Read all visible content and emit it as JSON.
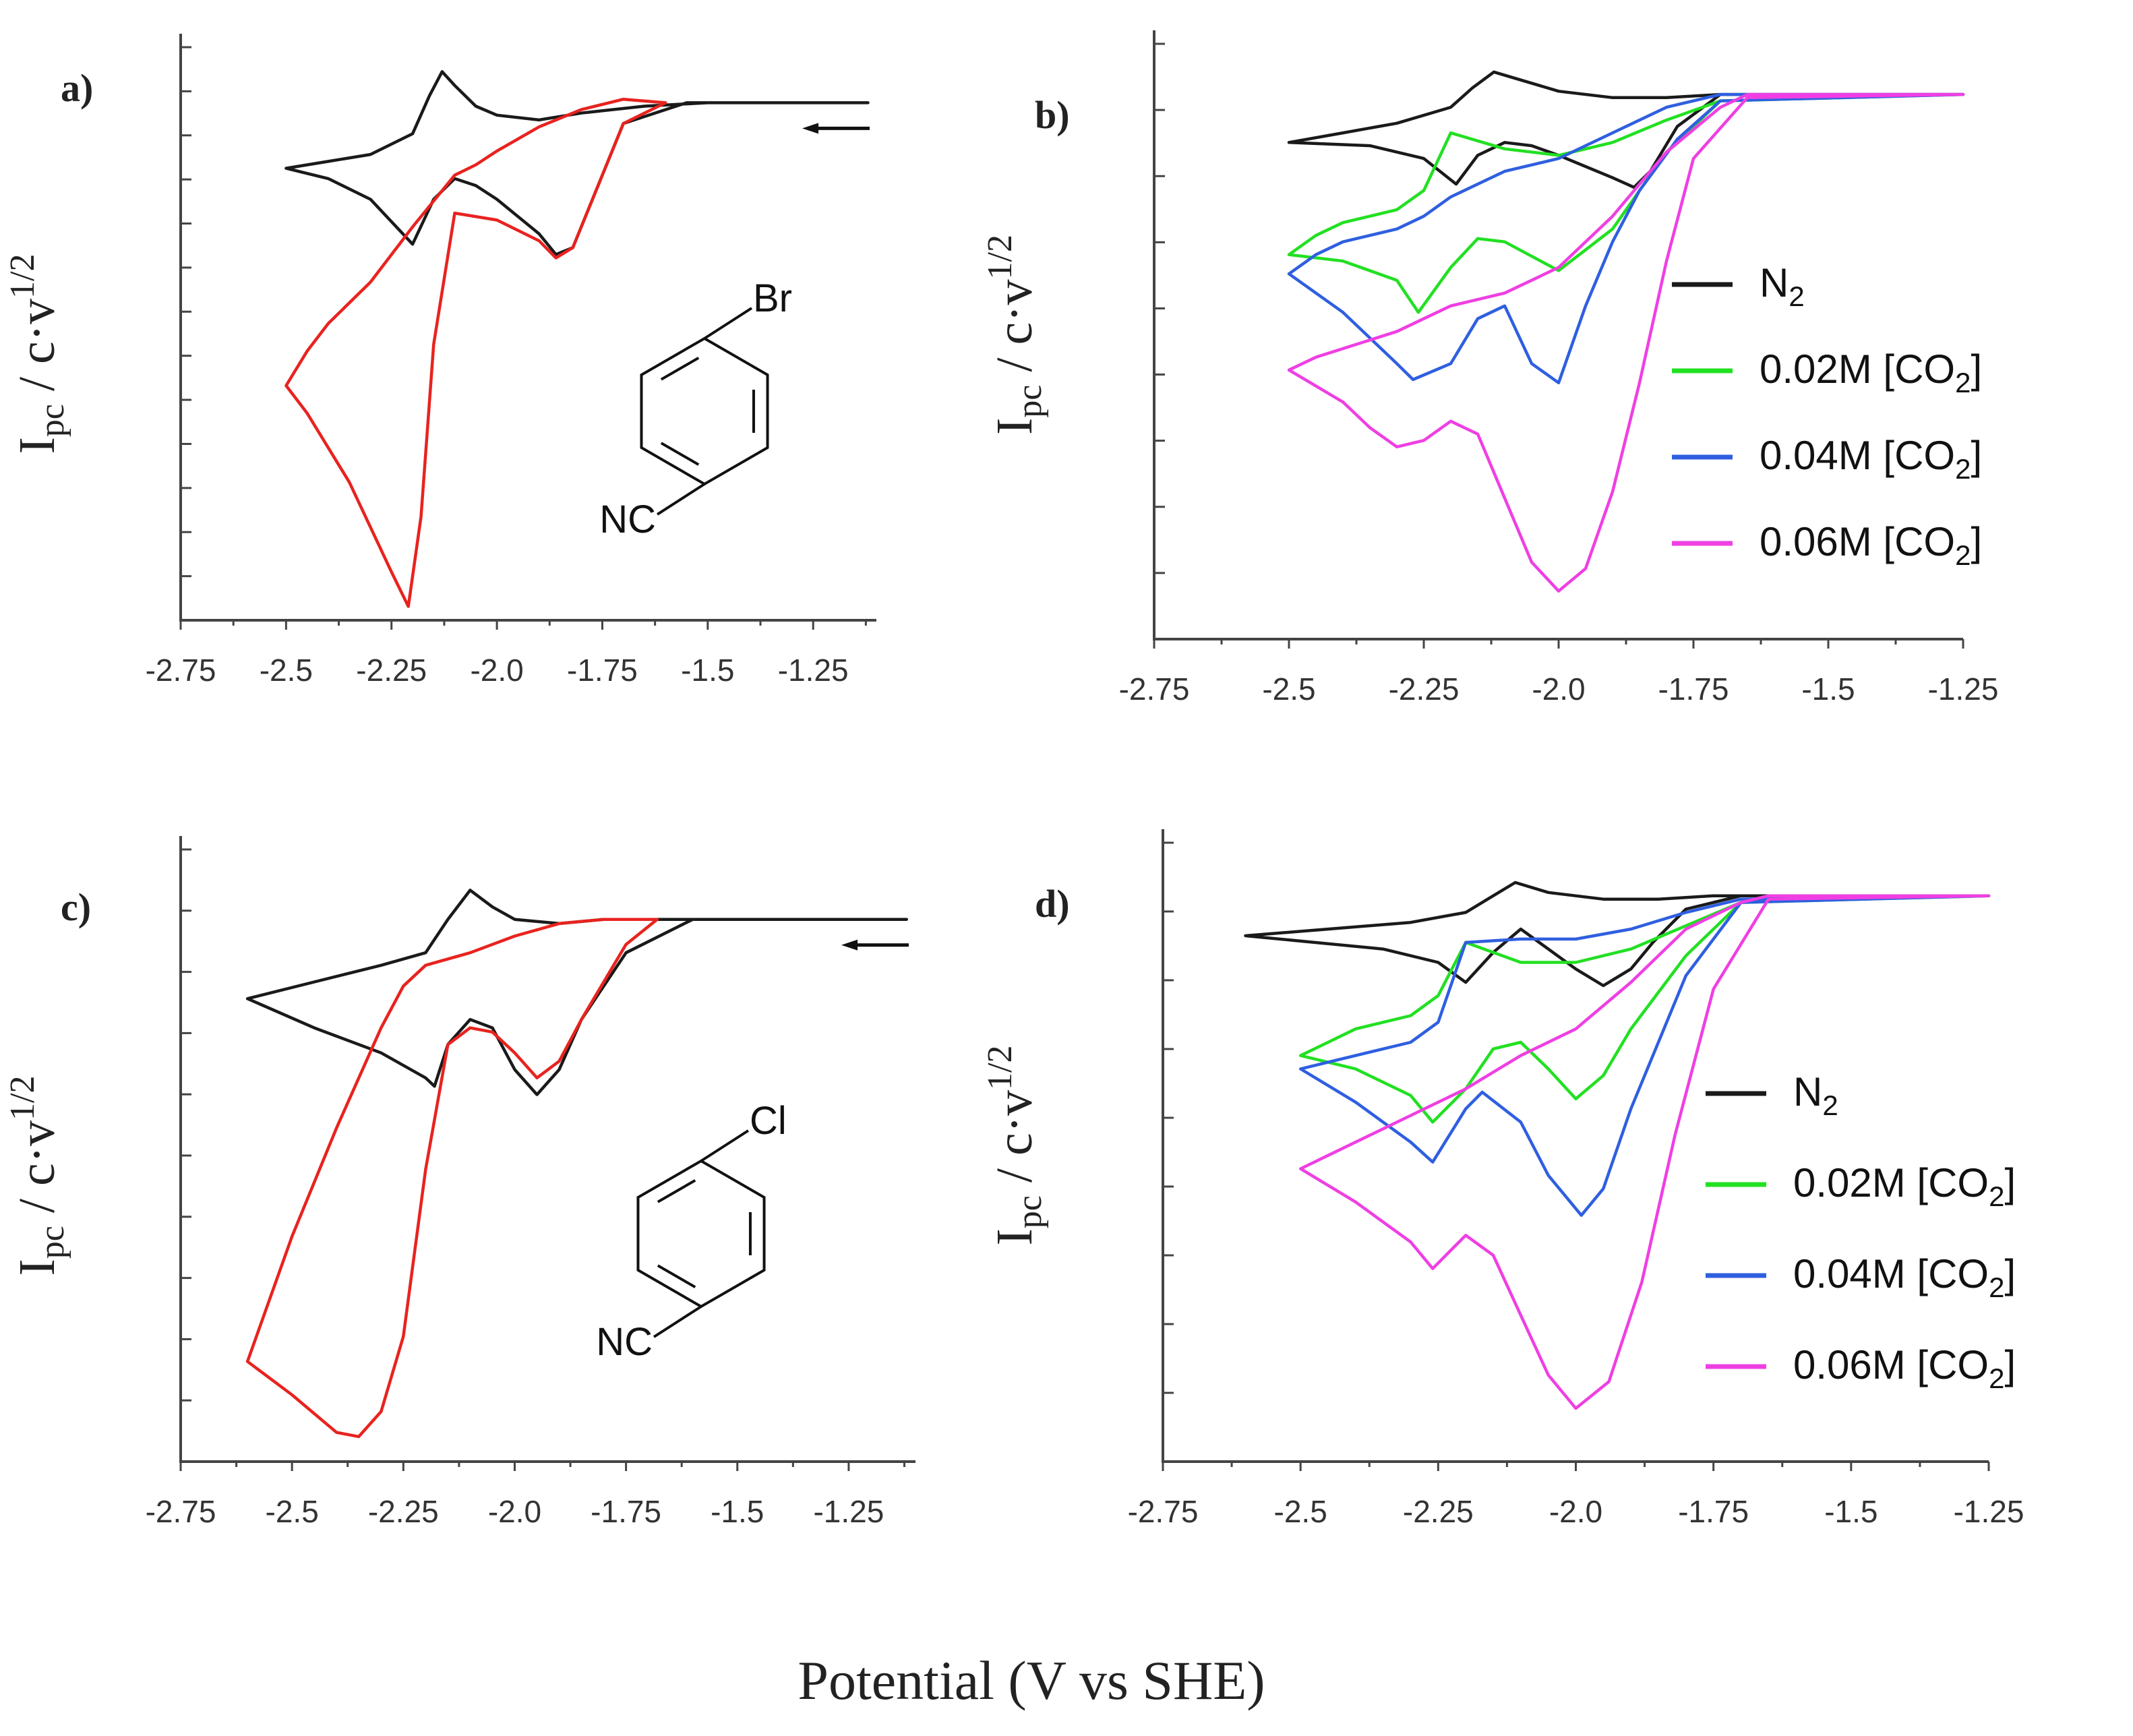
{
  "x_axis_label": "Potential (V vs SHE)",
  "colors": {
    "N2": "#1a1a1a",
    "CO2": "#e8231f",
    "0.02M": "#22e022",
    "0.04M": "#2f5fe0",
    "0.06M": "#ef3fe3"
  },
  "chart_data": [
    {
      "panel": "a)",
      "type": "line",
      "ylabel": "I",
      "ylabel_sub": "pc",
      "ylabel_rest": " / c·v",
      "ylabel_sup": "1/2",
      "xlim": [
        -2.75,
        -1.1
      ],
      "xticks": [
        "-2.75",
        "-2.5",
        "-2.25",
        "-2.0",
        "-1.75",
        "-1.5",
        "-1.25"
      ],
      "xtick_values": [
        -2.75,
        -2.5,
        -2.25,
        -2.0,
        -1.75,
        -1.5,
        -1.25
      ],
      "ylim": [
        -7.5,
        1
      ],
      "y_minor_ticks": 13,
      "scan_arrow": "leftward",
      "molecule": {
        "ring_substituents": [
          "Br",
          "NC"
        ],
        "shape": "para-disubstituted benzene"
      },
      "series": [
        {
          "color_key": "N2",
          "x": [
            -1.12,
            -1.55,
            -1.7,
            -1.78,
            -1.82,
            -1.86,
            -1.9,
            -2.0,
            -2.05,
            -2.1,
            -2.15,
            -2.2,
            -2.3,
            -2.4,
            -2.5,
            -2.4,
            -2.3,
            -2.2,
            -2.16,
            -2.13,
            -2.1,
            -2.05,
            -2.0,
            -1.9,
            -1.8,
            -1.65,
            -1.5,
            -1.12
          ],
          "y": [
            0,
            0,
            -0.3,
            -1.5,
            -2.1,
            -2.2,
            -1.9,
            -1.4,
            -1.2,
            -1.1,
            -1.4,
            -2.05,
            -1.4,
            -1.1,
            -0.95,
            -0.85,
            -0.75,
            -0.45,
            0.1,
            0.45,
            0.25,
            -0.05,
            -0.18,
            -0.25,
            -0.15,
            -0.05,
            0,
            0
          ]
        },
        {
          "color_key": "CO2",
          "x": [
            -1.6,
            -1.7,
            -1.78,
            -1.82,
            -1.86,
            -1.9,
            -2.0,
            -2.1,
            -2.15,
            -2.18,
            -2.21,
            -2.25,
            -2.35,
            -2.45,
            -2.5,
            -2.45,
            -2.4,
            -2.3,
            -2.2,
            -2.1,
            -2.05,
            -2.0,
            -1.9,
            -1.8,
            -1.7,
            -1.6
          ],
          "y": [
            0,
            -0.3,
            -1.5,
            -2.1,
            -2.25,
            -2.0,
            -1.7,
            -1.6,
            -3.5,
            -6.0,
            -7.3,
            -6.8,
            -5.5,
            -4.5,
            -4.1,
            -3.6,
            -3.2,
            -2.6,
            -1.8,
            -1.05,
            -0.9,
            -0.7,
            -0.35,
            -0.1,
            0.05,
            0
          ]
        }
      ]
    },
    {
      "panel": "b)",
      "type": "line",
      "ylabel": "I",
      "ylabel_sub": "pc",
      "ylabel_rest": " / c·v",
      "ylabel_sup": "1/2",
      "xlim": [
        -2.75,
        -1.25
      ],
      "xticks": [
        "-2.75",
        "-2.5",
        "-2.25",
        "-2.0",
        "-1.75",
        "-1.5",
        "-1.25"
      ],
      "xtick_values": [
        -2.75,
        -2.5,
        -2.25,
        -2.0,
        -1.75,
        -1.5,
        -1.25
      ],
      "ylim": [
        -8.5,
        1
      ],
      "y_minor_ticks": 9,
      "legend": [
        {
          "color_key": "N2",
          "label": "N",
          "sub": "2",
          "tail": ""
        },
        {
          "color_key": "0.02M",
          "label": "0.02M [CO",
          "sub": "2",
          "tail": "]"
        },
        {
          "color_key": "0.04M",
          "label": "0.04M [CO",
          "sub": "2",
          "tail": "]"
        },
        {
          "color_key": "0.06M",
          "label": "0.06M [CO",
          "sub": "2",
          "tail": "]"
        }
      ],
      "series": [
        {
          "color_key": "N2",
          "x": [
            -1.25,
            -1.7,
            -1.78,
            -1.83,
            -1.86,
            -1.9,
            -2.0,
            -2.05,
            -2.1,
            -2.15,
            -2.19,
            -2.25,
            -2.35,
            -2.5,
            -2.4,
            -2.3,
            -2.2,
            -2.16,
            -2.12,
            -2.08,
            -2.0,
            -1.9,
            -1.8,
            -1.7,
            -1.25
          ],
          "y": [
            0,
            0,
            -0.5,
            -1.2,
            -1.45,
            -1.3,
            -0.95,
            -0.8,
            -0.75,
            -0.95,
            -1.4,
            -1.0,
            -0.8,
            -0.75,
            -0.6,
            -0.45,
            -0.2,
            0.1,
            0.35,
            0.25,
            0.05,
            -0.05,
            -0.05,
            0,
            0
          ]
        },
        {
          "color_key": "0.02M",
          "x": [
            -1.25,
            -1.7,
            -1.8,
            -1.9,
            -2.0,
            -2.1,
            -2.15,
            -2.2,
            -2.26,
            -2.3,
            -2.4,
            -2.5,
            -2.45,
            -2.4,
            -2.3,
            -2.25,
            -2.2,
            -2.1,
            -2.0,
            -1.9,
            -1.8,
            -1.7,
            -1.25
          ],
          "y": [
            0,
            -0.1,
            -0.9,
            -2.1,
            -2.75,
            -2.3,
            -2.25,
            -2.7,
            -3.4,
            -2.9,
            -2.6,
            -2.5,
            -2.2,
            -2.0,
            -1.8,
            -1.5,
            -0.6,
            -0.85,
            -0.95,
            -0.75,
            -0.4,
            -0.1,
            0
          ]
        },
        {
          "color_key": "0.04M",
          "x": [
            -1.25,
            -1.7,
            -1.78,
            -1.85,
            -1.9,
            -1.95,
            -2.0,
            -2.05,
            -2.1,
            -2.15,
            -2.2,
            -2.27,
            -2.3,
            -2.4,
            -2.5,
            -2.45,
            -2.4,
            -2.3,
            -2.25,
            -2.2,
            -2.1,
            -2.0,
            -1.9,
            -1.8,
            -1.7,
            -1.25
          ],
          "y": [
            0,
            -0.1,
            -0.7,
            -1.5,
            -2.3,
            -3.3,
            -4.5,
            -4.2,
            -3.3,
            -3.5,
            -4.2,
            -4.45,
            -4.2,
            -3.4,
            -2.8,
            -2.5,
            -2.3,
            -2.1,
            -1.9,
            -1.6,
            -1.2,
            -1.0,
            -0.6,
            -0.2,
            0,
            0
          ]
        },
        {
          "color_key": "0.06M",
          "x": [
            -1.25,
            -1.65,
            -1.75,
            -1.8,
            -1.85,
            -1.9,
            -1.95,
            -2.0,
            -2.05,
            -2.1,
            -2.15,
            -2.2,
            -2.25,
            -2.3,
            -2.35,
            -2.4,
            -2.5,
            -2.45,
            -2.3,
            -2.2,
            -2.1,
            -2.0,
            -1.9,
            -1.8,
            -1.7,
            -1.65,
            -1.25
          ],
          "y": [
            0,
            -0.05,
            -1.0,
            -2.6,
            -4.5,
            -6.2,
            -7.4,
            -7.75,
            -7.3,
            -6.3,
            -5.3,
            -5.1,
            -5.4,
            -5.5,
            -5.2,
            -4.8,
            -4.3,
            -4.1,
            -3.7,
            -3.3,
            -3.1,
            -2.7,
            -1.9,
            -0.9,
            -0.2,
            0,
            0
          ]
        }
      ]
    },
    {
      "panel": "c)",
      "type": "line",
      "ylabel": "I",
      "ylabel_sub": "pc",
      "ylabel_rest": " / c·v",
      "ylabel_sup": "1/2",
      "xlim": [
        -2.75,
        -1.1
      ],
      "xticks": [
        "-2.75",
        "-2.5",
        "-2.25",
        "-2.0",
        "-1.75",
        "-1.5",
        "-1.25"
      ],
      "xtick_values": [
        -2.75,
        -2.5,
        -2.25,
        -2.0,
        -1.75,
        -1.5,
        -1.25
      ],
      "ylim": [
        -6.5,
        1
      ],
      "y_minor_ticks": 10,
      "scan_arrow": "leftward",
      "molecule": {
        "ring_substituents": [
          "Cl",
          "NC"
        ],
        "shape": "para-disubstituted benzene"
      },
      "series": [
        {
          "color_key": "N2",
          "x": [
            -1.12,
            -1.6,
            -1.75,
            -1.85,
            -1.9,
            -1.95,
            -2.0,
            -2.05,
            -2.1,
            -2.15,
            -2.18,
            -2.2,
            -2.3,
            -2.45,
            -2.6,
            -2.45,
            -2.3,
            -2.2,
            -2.15,
            -2.1,
            -2.05,
            -2.0,
            -1.9,
            -1.8,
            -1.6,
            -1.12
          ],
          "y": [
            0,
            0,
            -0.4,
            -1.2,
            -1.8,
            -2.1,
            -1.8,
            -1.3,
            -1.2,
            -1.5,
            -2.0,
            -1.9,
            -1.6,
            -1.3,
            -0.95,
            -0.75,
            -0.55,
            -0.4,
            0,
            0.35,
            0.15,
            0,
            -0.05,
            0,
            0,
            0
          ]
        },
        {
          "color_key": "CO2",
          "x": [
            -1.68,
            -1.75,
            -1.85,
            -1.9,
            -1.95,
            -2.0,
            -2.05,
            -2.1,
            -2.15,
            -2.2,
            -2.25,
            -2.3,
            -2.35,
            -2.4,
            -2.5,
            -2.6,
            -2.5,
            -2.4,
            -2.3,
            -2.25,
            -2.2,
            -2.1,
            -2.0,
            -1.9,
            -1.8,
            -1.68
          ],
          "y": [
            0,
            -0.3,
            -1.2,
            -1.7,
            -1.9,
            -1.6,
            -1.35,
            -1.3,
            -1.5,
            -3.0,
            -5.0,
            -5.9,
            -6.2,
            -6.15,
            -5.7,
            -5.3,
            -3.8,
            -2.5,
            -1.3,
            -0.8,
            -0.55,
            -0.4,
            -0.2,
            -0.05,
            0,
            0
          ]
        }
      ]
    },
    {
      "panel": "d)",
      "type": "line",
      "ylabel": "I",
      "ylabel_sub": "pc",
      "ylabel_rest": " / c·v",
      "ylabel_sup": "1/2",
      "xlim": [
        -2.75,
        -1.25
      ],
      "xticks": [
        "-2.75",
        "-2.5",
        "-2.25",
        "-2.0",
        "-1.75",
        "-1.5",
        "-1.25"
      ],
      "xtick_values": [
        -2.75,
        -2.5,
        -2.25,
        -2.0,
        -1.75,
        -1.5,
        -1.25
      ],
      "ylim": [
        -8.5,
        1
      ],
      "y_minor_ticks": 9,
      "legend": [
        {
          "color_key": "N2",
          "label": "N",
          "sub": "2",
          "tail": ""
        },
        {
          "color_key": "0.02M",
          "label": "0.02M [CO",
          "sub": "2",
          "tail": "]"
        },
        {
          "color_key": "0.04M",
          "label": "0.04M [CO",
          "sub": "2",
          "tail": "]"
        },
        {
          "color_key": "0.06M",
          "label": "0.06M [CO",
          "sub": "2",
          "tail": "]"
        }
      ],
      "series": [
        {
          "color_key": "N2",
          "x": [
            -1.25,
            -1.7,
            -1.8,
            -1.86,
            -1.9,
            -1.95,
            -2.0,
            -2.05,
            -2.1,
            -2.15,
            -2.2,
            -2.25,
            -2.35,
            -2.6,
            -2.45,
            -2.3,
            -2.2,
            -2.15,
            -2.11,
            -2.05,
            -1.95,
            -1.85,
            -1.75,
            -1.25
          ],
          "y": [
            0,
            0,
            -0.2,
            -0.7,
            -1.1,
            -1.35,
            -1.1,
            -0.8,
            -0.5,
            -0.85,
            -1.3,
            -1.0,
            -0.8,
            -0.6,
            -0.5,
            -0.4,
            -0.25,
            0,
            0.2,
            0.05,
            -0.05,
            -0.05,
            0,
            0
          ]
        },
        {
          "color_key": "0.02M",
          "x": [
            -1.25,
            -1.7,
            -1.8,
            -1.9,
            -1.95,
            -2.0,
            -2.05,
            -2.1,
            -2.15,
            -2.2,
            -2.26,
            -2.3,
            -2.4,
            -2.5,
            -2.45,
            -2.4,
            -2.3,
            -2.25,
            -2.2,
            -2.1,
            -2.0,
            -1.9,
            -1.8,
            -1.7,
            -1.25
          ],
          "y": [
            0,
            -0.1,
            -0.9,
            -2.0,
            -2.7,
            -3.05,
            -2.6,
            -2.2,
            -2.3,
            -2.9,
            -3.4,
            -3.0,
            -2.6,
            -2.4,
            -2.2,
            -2.0,
            -1.8,
            -1.5,
            -0.7,
            -1.0,
            -1.0,
            -0.8,
            -0.45,
            -0.1,
            0
          ]
        },
        {
          "color_key": "0.04M",
          "x": [
            -1.25,
            -1.7,
            -1.8,
            -1.9,
            -1.95,
            -1.99,
            -2.05,
            -2.1,
            -2.17,
            -2.2,
            -2.26,
            -2.3,
            -2.4,
            -2.5,
            -2.45,
            -2.4,
            -2.3,
            -2.25,
            -2.2,
            -2.1,
            -2.0,
            -1.9,
            -1.8,
            -1.7,
            -1.25
          ],
          "y": [
            0,
            -0.1,
            -1.2,
            -3.2,
            -4.4,
            -4.8,
            -4.2,
            -3.4,
            -2.95,
            -3.2,
            -4.0,
            -3.7,
            -3.1,
            -2.6,
            -2.5,
            -2.4,
            -2.2,
            -1.9,
            -0.7,
            -0.65,
            -0.65,
            -0.5,
            -0.25,
            -0.05,
            0
          ]
        },
        {
          "color_key": "0.06M",
          "x": [
            -1.25,
            -1.65,
            -1.75,
            -1.82,
            -1.88,
            -1.94,
            -2.0,
            -2.05,
            -2.1,
            -2.15,
            -2.2,
            -2.26,
            -2.3,
            -2.4,
            -2.5,
            -2.45,
            -2.3,
            -2.2,
            -2.1,
            -2.0,
            -1.9,
            -1.8,
            -1.7,
            -1.65,
            -1.25
          ],
          "y": [
            0,
            -0.05,
            -1.4,
            -3.6,
            -5.8,
            -7.3,
            -7.7,
            -7.2,
            -6.3,
            -5.4,
            -5.1,
            -5.6,
            -5.2,
            -4.6,
            -4.1,
            -3.9,
            -3.3,
            -2.9,
            -2.4,
            -2.0,
            -1.3,
            -0.5,
            -0.1,
            0,
            0
          ]
        }
      ]
    }
  ]
}
